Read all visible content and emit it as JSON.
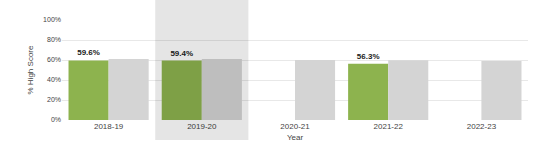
{
  "chart_data": {
    "type": "bar",
    "categories": [
      "2018-19",
      "2019-20",
      "2020-21",
      "2021-22",
      "2022-23"
    ],
    "series": [
      {
        "color": "#8db34e",
        "values": [
          59.6,
          59.4,
          null,
          56.3,
          null
        ],
        "value_labels": [
          "59.6%",
          "59.4%",
          null,
          "56.3%",
          null
        ]
      },
      {
        "color": "#d4d4d4",
        "values": [
          61,
          61,
          60,
          59.7,
          59
        ]
      }
    ],
    "x_label": "Year",
    "y_label": "% High Score",
    "ylim": [
      0,
      100
    ],
    "yticks": [
      {
        "value": 0,
        "label": "0%"
      },
      {
        "value": 20,
        "label": "20%"
      },
      {
        "value": 40,
        "label": "40%"
      },
      {
        "value": 60,
        "label": "60%"
      },
      {
        "value": 80,
        "label": "80%"
      },
      {
        "value": 100,
        "label": "100%"
      }
    ],
    "grid": true
  }
}
